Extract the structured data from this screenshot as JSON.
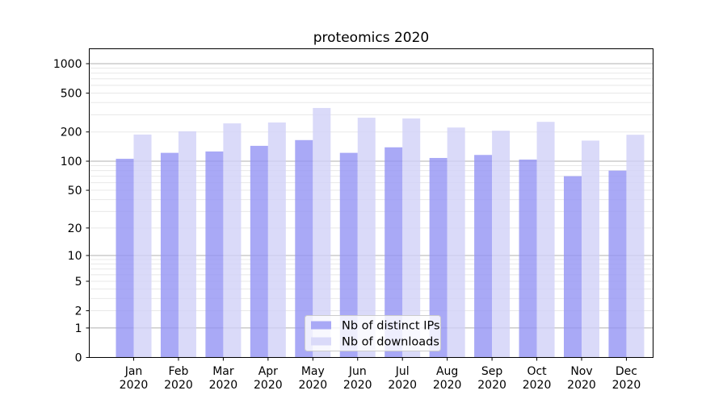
{
  "chart_data": {
    "type": "bar",
    "title": "proteomics 2020",
    "categories": [
      "Jan",
      "Feb",
      "Mar",
      "Apr",
      "May",
      "Jun",
      "Jul",
      "Aug",
      "Sep",
      "Oct",
      "Nov",
      "Dec"
    ],
    "x_label_year": "2020",
    "series": [
      {
        "name": "Nb of distinct IPs",
        "color": "#a9a9f6",
        "values": [
          106,
          122,
          126,
          144,
          165,
          122,
          139,
          108,
          116,
          104,
          70,
          80
        ]
      },
      {
        "name": "Nb of downloads",
        "color": "#dadaf9",
        "values": [
          188,
          203,
          245,
          250,
          352,
          280,
          275,
          222,
          206,
          254,
          163,
          187
        ]
      }
    ],
    "yscale": "log1p",
    "yticks": [
      0,
      1,
      2,
      5,
      10,
      20,
      50,
      100,
      200,
      500,
      1000
    ],
    "ylim": [
      0,
      1430
    ],
    "grid": true,
    "legend_position": "lower center",
    "colors": {
      "major_gridline": "#b0b0b0",
      "minor_gridline": "#e8e8e8",
      "axis": "#000000",
      "legend_border": "#cccccc",
      "legend_background": "#ffffff"
    }
  }
}
